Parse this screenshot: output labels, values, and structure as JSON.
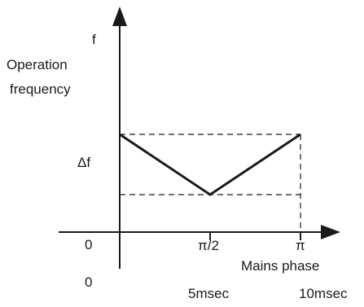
{
  "labels": {
    "f_axis": "f",
    "operation": "Operation",
    "frequency": "frequency",
    "delta_f": "Δf",
    "origin_top": "0",
    "origin_bottom": "0",
    "pi_half": "π/2",
    "pi": "π",
    "mains_phase": "Mains  phase",
    "time_5": "5msec",
    "time_10": "10msec"
  }
}
